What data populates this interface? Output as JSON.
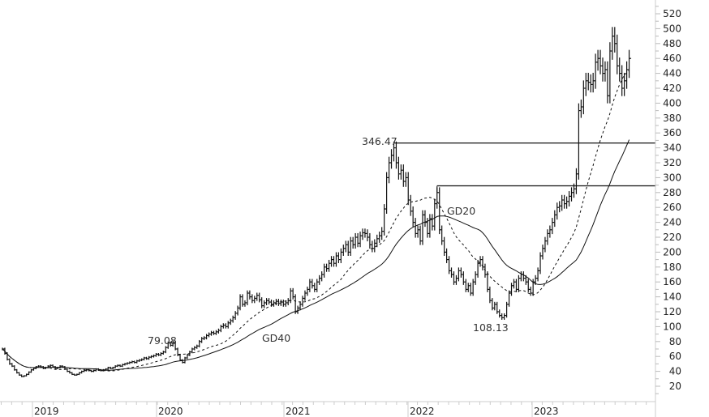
{
  "chart_data": {
    "type": "ohlc",
    "title": "",
    "xlabel": "",
    "ylabel": "",
    "ylim": [
      20,
      520
    ],
    "yticks": [
      20,
      40,
      60,
      80,
      100,
      120,
      140,
      160,
      180,
      200,
      220,
      240,
      260,
      280,
      300,
      320,
      340,
      360,
      380,
      400,
      420,
      440,
      460,
      480,
      500,
      520
    ],
    "xticks": [
      "2019",
      "2020",
      "2021",
      "2022",
      "2023"
    ],
    "grid": false,
    "frequency": "weekly",
    "closes": [
      70,
      64,
      56,
      50,
      47,
      42,
      38,
      35,
      33,
      34,
      36,
      39,
      42,
      44,
      46,
      47,
      46,
      44,
      45,
      47,
      48,
      46,
      44,
      45,
      47,
      46,
      43,
      40,
      38,
      36,
      35,
      36,
      38,
      40,
      41,
      42,
      41,
      40,
      41,
      43,
      42,
      41,
      42,
      43,
      45,
      44,
      45,
      47,
      48,
      47,
      49,
      50,
      51,
      52,
      53,
      52,
      54,
      55,
      56,
      58,
      57,
      59,
      60,
      61,
      63,
      62,
      64,
      66,
      72,
      78,
      75,
      79,
      70,
      62,
      55,
      52,
      58,
      62,
      66,
      70,
      72,
      74,
      80,
      84,
      85,
      88,
      90,
      92,
      91,
      93,
      95,
      100,
      102,
      100,
      105,
      108,
      112,
      118,
      125,
      140,
      130,
      132,
      145,
      140,
      135,
      138,
      142,
      136,
      128,
      132,
      135,
      133,
      130,
      132,
      134,
      131,
      133,
      130,
      132,
      135,
      148,
      140,
      120,
      125,
      130,
      138,
      145,
      150,
      160,
      155,
      150,
      160,
      165,
      170,
      180,
      178,
      185,
      190,
      185,
      195,
      190,
      200,
      205,
      210,
      200,
      215,
      210,
      220,
      212,
      222,
      226,
      225,
      220,
      210,
      205,
      212,
      218,
      222,
      228,
      258,
      300,
      320,
      330,
      340,
      320,
      305,
      310,
      295,
      300,
      270,
      255,
      240,
      225,
      230,
      215,
      250,
      240,
      225,
      245,
      235,
      265,
      280,
      230,
      215,
      200,
      190,
      175,
      170,
      160,
      165,
      175,
      170,
      160,
      150,
      155,
      145,
      160,
      170,
      185,
      190,
      180,
      170,
      150,
      135,
      125,
      130,
      120,
      115,
      112,
      115,
      130,
      145,
      155,
      160,
      150,
      165,
      170,
      165,
      160,
      150,
      145,
      160,
      165,
      175,
      195,
      205,
      215,
      225,
      230,
      240,
      250,
      260,
      262,
      270,
      265,
      268,
      275,
      280,
      285,
      305,
      390,
      395,
      420,
      430,
      428,
      425,
      430,
      455,
      460,
      450,
      440,
      445,
      410,
      470,
      490,
      480,
      450,
      440,
      420,
      430,
      445,
      460
    ],
    "moving_averages": [
      {
        "name": "GD20",
        "period": 20,
        "style": "dashed"
      },
      {
        "name": "GD40",
        "period": 40,
        "style": "solid"
      }
    ],
    "horizontal_lines": [
      {
        "value": 346.47,
        "label": "346.47"
      },
      {
        "value": 289,
        "label": ""
      }
    ],
    "annotations": [
      {
        "text": "79.08",
        "value": 79.08
      },
      {
        "text": "346.47",
        "value": 346.47
      },
      {
        "text": "108.13",
        "value": 108.13
      },
      {
        "text": "GD20"
      },
      {
        "text": "GD40"
      }
    ],
    "colors": {
      "bars": "#111111",
      "lines": "#111111",
      "axis": "#cccccc",
      "text": "#222222"
    }
  }
}
